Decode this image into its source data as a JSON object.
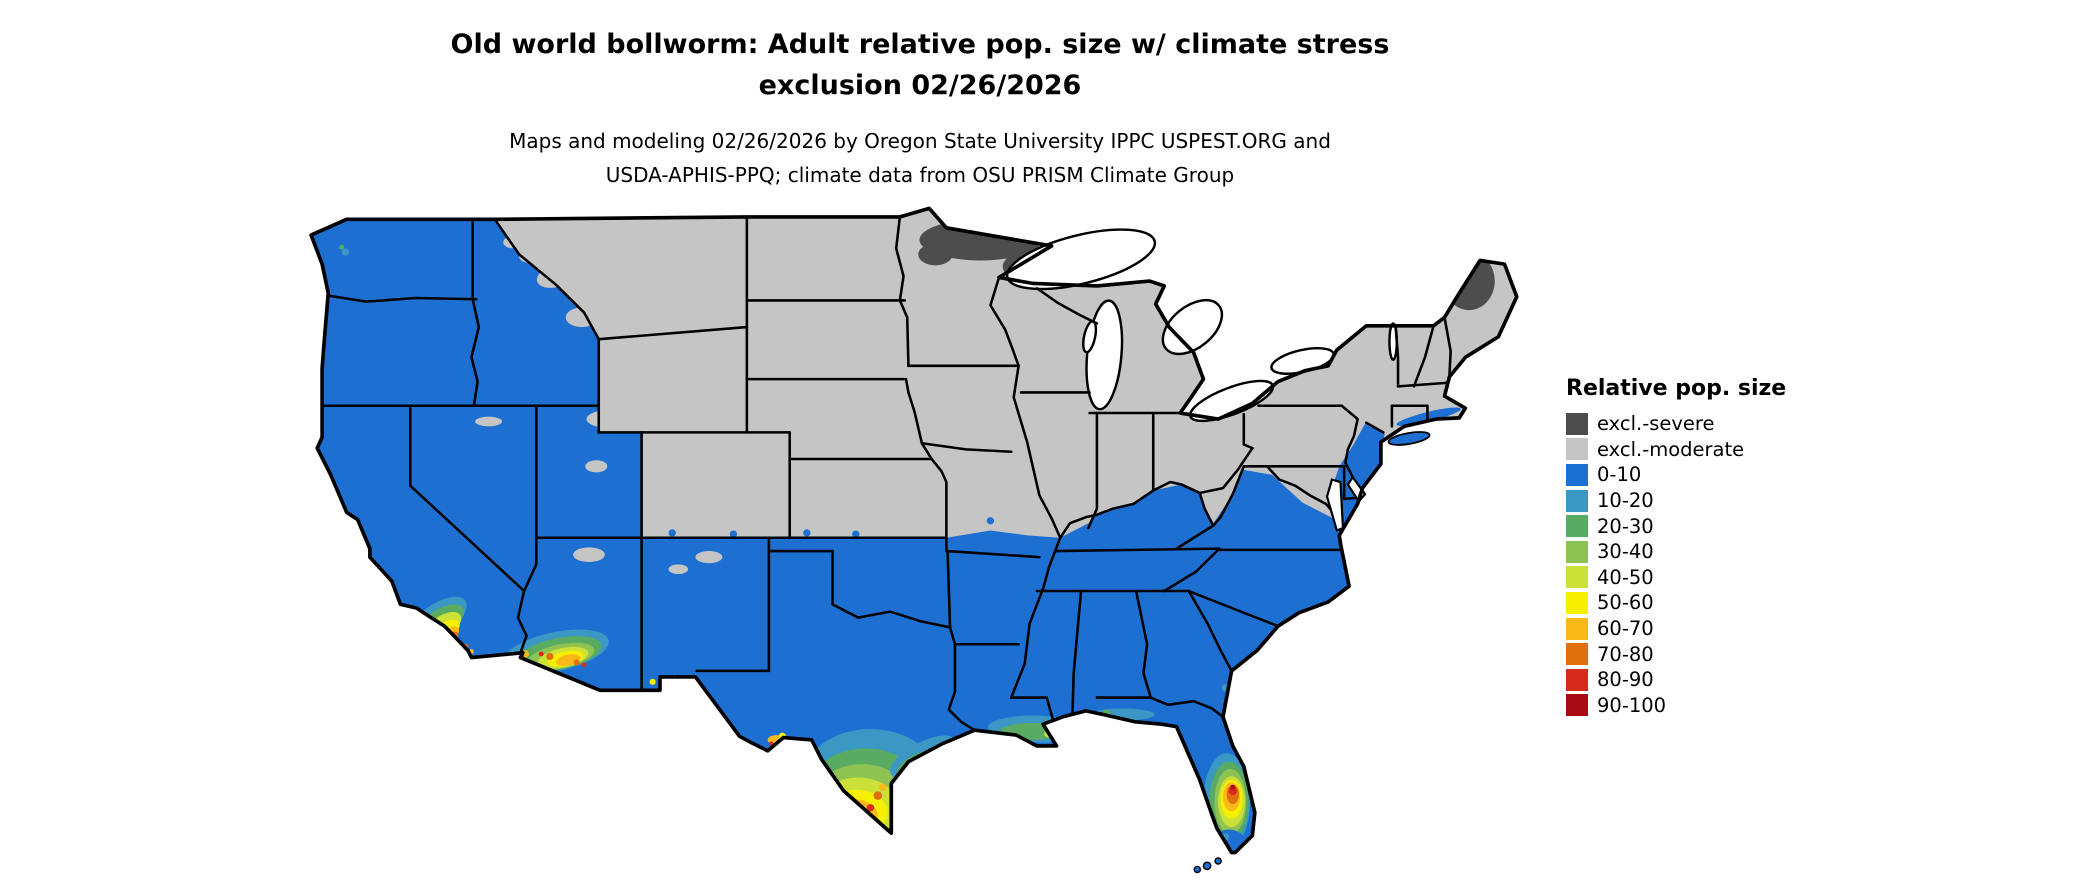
{
  "title": {
    "line1": "Old world bollworm: Adult relative pop. size w/ climate stress",
    "line2": "exclusion 02/26/2026"
  },
  "subtitle": {
    "line1": "Maps and modeling 02/26/2026 by Oregon State University IPPC USPEST.ORG and",
    "line2": "USDA-APHIS-PPQ; climate data from OSU PRISM Climate Group"
  },
  "legend": {
    "title": "Relative pop. size",
    "items": [
      {
        "key": "excl_severe",
        "label": "excl.-severe"
      },
      {
        "key": "excl_moderate",
        "label": "excl.-moderate"
      },
      {
        "key": "b0_10",
        "label": "0-10"
      },
      {
        "key": "b10_20",
        "label": "10-20"
      },
      {
        "key": "b20_30",
        "label": "20-30"
      },
      {
        "key": "b30_40",
        "label": "30-40"
      },
      {
        "key": "b40_50",
        "label": "40-50"
      },
      {
        "key": "b50_60",
        "label": "50-60"
      },
      {
        "key": "b60_70",
        "label": "60-70"
      },
      {
        "key": "b70_80",
        "label": "70-80"
      },
      {
        "key": "b80_90",
        "label": "80-90"
      },
      {
        "key": "b90_100",
        "label": "90-100"
      }
    ]
  },
  "colors": {
    "excl_severe": "#4d4d4d",
    "excl_moderate": "#c5c5c5",
    "b0_10": "#1d70d2",
    "b10_20": "#3b97c4",
    "b20_30": "#58ab60",
    "b30_40": "#8ec252",
    "b40_50": "#cbe138",
    "b50_60": "#f6ef00",
    "b60_70": "#fbb917",
    "b70_80": "#e06f0e",
    "b80_90": "#d62a1c",
    "b90_100": "#a80b14"
  }
}
